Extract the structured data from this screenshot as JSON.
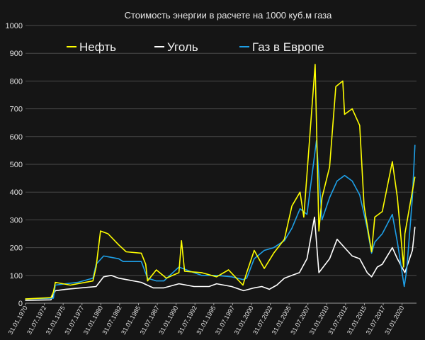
{
  "chart_data": {
    "type": "line",
    "title": "Стоимость энергии в расчете на 1000 куб.м газа",
    "xlabel": "",
    "ylabel": "",
    "ylim": [
      0,
      1000
    ],
    "xlim": [
      "1970-01-31",
      "2021-12-31"
    ],
    "grid": true,
    "legend_position": "top",
    "y_ticks": [
      0,
      100,
      200,
      300,
      400,
      500,
      600,
      700,
      800,
      900,
      1000
    ],
    "x_tick_labels": [
      "31.01.1970",
      "31.07.1972",
      "31.01.1975",
      "31.07.1977",
      "31.01.1980",
      "31.07.1982",
      "31.01.1985",
      "31.07.1987",
      "31.01.1990",
      "31.07.1992",
      "31.01.1995",
      "31.07.1997",
      "31.01.2000",
      "31.07.2002",
      "31.01.2005",
      "31.07.2007",
      "31.01.2010",
      "31.07.2012",
      "31.01.2015",
      "31.07.2017",
      "31.01.2020"
    ],
    "series": [
      {
        "name": "Нефть",
        "color": "#ffff00",
        "x": [
          "1970-01",
          "1973-06",
          "1973-10",
          "1974-01",
          "1976-01",
          "1979-01",
          "1979-06",
          "1980-01",
          "1981-01",
          "1982-06",
          "1983-06",
          "1985-06",
          "1986-01",
          "1986-04",
          "1987-06",
          "1988-10",
          "1990-06",
          "1990-10",
          "1991-03",
          "1993-06",
          "1995-06",
          "1997-01",
          "1998-12",
          "1999-06",
          "2000-06",
          "2001-10",
          "2003-01",
          "2004-06",
          "2005-06",
          "2006-07",
          "2007-01",
          "2008-07",
          "2009-01",
          "2009-06",
          "2010-06",
          "2011-04",
          "2012-03",
          "2012-06",
          "2013-06",
          "2014-06",
          "2015-01",
          "2016-01",
          "2016-06",
          "2017-06",
          "2018-10",
          "2019-06",
          "2020-04",
          "2020-06",
          "2021-01",
          "2021-10"
        ],
        "values": [
          15,
          20,
          40,
          75,
          65,
          80,
          130,
          260,
          250,
          210,
          185,
          180,
          140,
          80,
          120,
          90,
          110,
          225,
          115,
          110,
          95,
          120,
          65,
          110,
          190,
          125,
          180,
          230,
          350,
          400,
          310,
          860,
          260,
          380,
          490,
          780,
          800,
          680,
          700,
          640,
          350,
          185,
          310,
          330,
          510,
          380,
          130,
          250,
          340,
          455
        ]
      },
      {
        "name": "Уголь",
        "color": "#ffffff",
        "x": [
          "1970-01",
          "1973-06",
          "1974-01",
          "1975-06",
          "1977-06",
          "1979-06",
          "1980-06",
          "1981-06",
          "1982-06",
          "1983-06",
          "1985-06",
          "1987-01",
          "1988-06",
          "1990-06",
          "1992-06",
          "1994-06",
          "1995-06",
          "1997-06",
          "1999-01",
          "2000-06",
          "2001-06",
          "2002-06",
          "2003-06",
          "2004-06",
          "2005-06",
          "2006-06",
          "2007-06",
          "2008-06",
          "2009-01",
          "2010-06",
          "2011-06",
          "2012-06",
          "2013-06",
          "2014-06",
          "2015-06",
          "2016-01",
          "2016-10",
          "2017-06",
          "2018-10",
          "2019-06",
          "2020-06",
          "2021-06",
          "2021-10"
        ],
        "values": [
          10,
          12,
          45,
          50,
          55,
          60,
          95,
          100,
          90,
          85,
          75,
          55,
          55,
          70,
          60,
          60,
          70,
          60,
          45,
          55,
          60,
          50,
          65,
          90,
          100,
          110,
          160,
          310,
          110,
          160,
          230,
          200,
          170,
          160,
          110,
          95,
          130,
          140,
          200,
          160,
          110,
          190,
          275
        ]
      },
      {
        "name": "Газ в Европе",
        "color": "#1e9fe6",
        "x": [
          "1970-01",
          "1973-10",
          "1974-01",
          "1975-06",
          "1977-01",
          "1979-01",
          "1979-06",
          "1980-06",
          "1981-06",
          "1982-06",
          "1983-01",
          "1985-06",
          "1986-04",
          "1987-06",
          "1988-06",
          "1990-06",
          "1991-06",
          "1993-06",
          "1995-06",
          "1997-06",
          "1998-12",
          "1999-06",
          "2000-06",
          "2001-10",
          "2003-01",
          "2004-06",
          "2005-06",
          "2006-07",
          "2007-06",
          "2008-09",
          "2009-06",
          "2010-06",
          "2011-06",
          "2012-06",
          "2013-06",
          "2014-06",
          "2015-06",
          "2016-01",
          "2016-06",
          "2017-06",
          "2018-10",
          "2019-06",
          "2020-05",
          "2020-09",
          "2021-06",
          "2021-10"
        ],
        "values": [
          15,
          18,
          65,
          70,
          75,
          90,
          140,
          170,
          165,
          160,
          150,
          150,
          90,
          80,
          80,
          130,
          120,
          100,
          100,
          95,
          85,
          90,
          160,
          190,
          200,
          225,
          270,
          340,
          320,
          585,
          300,
          380,
          440,
          460,
          440,
          390,
          270,
          180,
          220,
          250,
          320,
          220,
          60,
          120,
          380,
          570
        ]
      }
    ]
  }
}
